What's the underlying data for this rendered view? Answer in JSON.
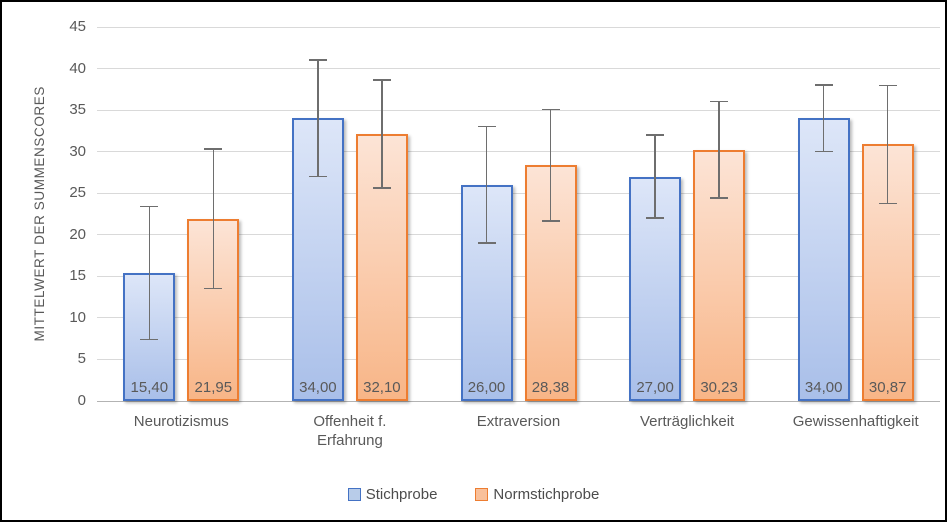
{
  "chart_data": {
    "type": "bar",
    "title": "",
    "ylabel": "MITTELWERT DER SUMMENSCORES",
    "xlabel": "",
    "ylim": [
      0,
      45
    ],
    "ytick_step": 5,
    "yticks": [
      "0",
      "5",
      "10",
      "15",
      "20",
      "25",
      "30",
      "35",
      "40",
      "45"
    ],
    "grid": true,
    "legend_position": "bottom",
    "categories": [
      "Neurotizismus",
      "Offenheit f. Erfahrung",
      "Extraversion",
      "Verträglichkeit",
      "Gewissenhaftigkeit"
    ],
    "series": [
      {
        "name": "Stichprobe",
        "values": [
          15.4,
          34.0,
          26.0,
          27.0,
          34.0
        ],
        "value_labels": [
          "15,40",
          "34,00",
          "26,00",
          "27,00",
          "34,00"
        ],
        "errors": [
          8.0,
          7.0,
          7.0,
          5.0,
          4.0
        ],
        "fill_top": "#dde6f8",
        "fill_bottom": "#a9bfe9",
        "border_color": "#4472c4",
        "legend_fill": "#b8cce9"
      },
      {
        "name": "Normstichprobe",
        "values": [
          21.95,
          32.1,
          28.38,
          30.23,
          30.87
        ],
        "value_labels": [
          "21,95",
          "32,10",
          "28,38",
          "30,23",
          "30,87"
        ],
        "errors": [
          8.4,
          6.5,
          6.7,
          5.8,
          7.1
        ],
        "fill_top": "#fce4d6",
        "fill_bottom": "#f8b587",
        "border_color": "#ed7d31",
        "legend_fill": "#f9c09a"
      }
    ],
    "colors": {
      "tick_label": "#595959",
      "gridline": "#d9d9d9",
      "error_bar": "#6e6e6e",
      "frame_border": "#000000"
    }
  }
}
